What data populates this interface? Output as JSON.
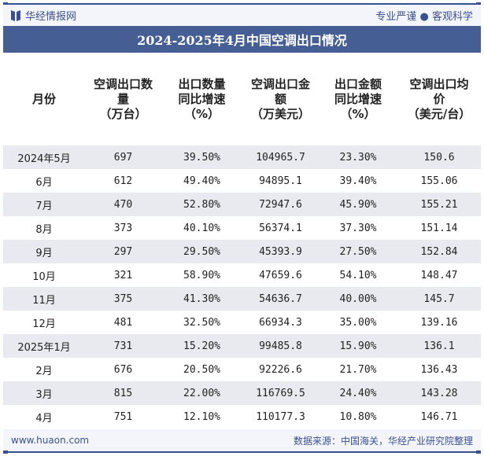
{
  "header": {
    "brand": "华经情报网",
    "slogan": "专业严谨 ● 客观科学"
  },
  "title": "2024-2025年4月中国空调出口情况",
  "columns": [
    "月份",
    "空调出口数量（万台）",
    "出口数量同比增速（%）",
    "空调出口金额（万美元）",
    "出口金额同比增速（%）",
    "空调出口均价（美元/台）"
  ],
  "column_lines": [
    [
      "月份"
    ],
    [
      "空调出口数",
      "量",
      "（万台）"
    ],
    [
      "出口数量",
      "同比增速",
      "（%）"
    ],
    [
      "空调出口金",
      "额",
      "（万美元）"
    ],
    [
      "出口金额",
      "同比增速",
      "（%）"
    ],
    [
      "空调出口均",
      "价",
      "（美元/台）"
    ]
  ],
  "rows": [
    [
      "2024年5月",
      "697",
      "39.50%",
      "104965.7",
      "23.30%",
      "150.6"
    ],
    [
      "6月",
      "612",
      "49.40%",
      "94895.1",
      "39.40%",
      "155.06"
    ],
    [
      "7月",
      "470",
      "52.80%",
      "72947.6",
      "45.90%",
      "155.21"
    ],
    [
      "8月",
      "373",
      "40.10%",
      "56374.1",
      "37.30%",
      "151.14"
    ],
    [
      "9月",
      "297",
      "29.50%",
      "45393.9",
      "27.50%",
      "152.84"
    ],
    [
      "10月",
      "321",
      "58.90%",
      "47659.6",
      "54.10%",
      "148.47"
    ],
    [
      "11月",
      "375",
      "41.30%",
      "54636.7",
      "40.00%",
      "145.7"
    ],
    [
      "12月",
      "481",
      "32.50%",
      "66934.3",
      "35.00%",
      "139.16"
    ],
    [
      "2025年1月",
      "731",
      "15.20%",
      "99485.8",
      "15.90%",
      "136.1"
    ],
    [
      "2月",
      "676",
      "20.50%",
      "92226.6",
      "21.70%",
      "136.43"
    ],
    [
      "3月",
      "815",
      "22.00%",
      "116769.5",
      "24.40%",
      "143.28"
    ],
    [
      "4月",
      "751",
      "12.10%",
      "110177.3",
      "10.80%",
      "146.71"
    ]
  ],
  "footer": {
    "website": "www.huaon.com",
    "source": "数据来源：中国海关，华经产业研究院整理"
  }
}
